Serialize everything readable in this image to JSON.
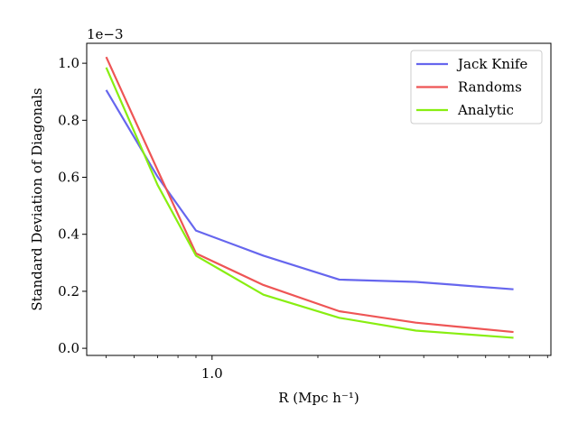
{
  "chart_data": {
    "type": "line",
    "xscale": "log",
    "xlabel": "R (Mpc h⁻¹)",
    "ylabel": "Standard Deviation of Diagonals",
    "y_offset_text": "1e−3",
    "xlim": [
      0.44,
      9.2
    ],
    "ylim": [
      -0.025,
      1.07
    ],
    "yticks": [
      "0.0",
      "0.2",
      "0.4",
      "0.6",
      "0.8",
      "1.0"
    ],
    "ytick_values": [
      0.0,
      0.2,
      0.4,
      0.6,
      0.8,
      1.0
    ],
    "xticks": [
      "1.0"
    ],
    "xtick_values": [
      1.0
    ],
    "x": [
      0.5,
      0.7,
      0.9,
      1.4,
      2.3,
      3.8,
      7.2
    ],
    "series": [
      {
        "name": "Jack Knife",
        "color": "#6666ee",
        "values": [
          0.906,
          0.602,
          0.413,
          0.325,
          0.241,
          0.233,
          0.207
        ]
      },
      {
        "name": "Randoms",
        "color": "#ee5555",
        "values": [
          1.022,
          0.625,
          0.333,
          0.222,
          0.13,
          0.09,
          0.057
        ]
      },
      {
        "name": "Analytic",
        "color": "#88ee11",
        "values": [
          0.985,
          0.573,
          0.325,
          0.188,
          0.107,
          0.062,
          0.037
        ]
      }
    ],
    "legend_position": "top-right",
    "grid": false
  }
}
